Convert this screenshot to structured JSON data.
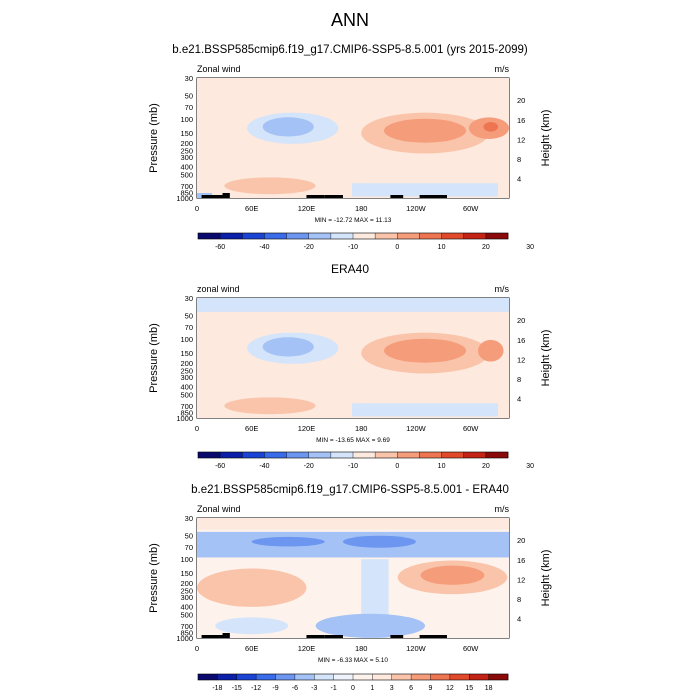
{
  "title": "ANN",
  "chart_data": [
    {
      "type": "heatmap",
      "subtitle": "b.e21.BSSP585cmip6.f19_g17.CMIP6-SSP5-8.5.001 (yrs 2015-2099)",
      "left_label": "Zonal wind",
      "right_label": "m/s",
      "ylabel": "Pressure (mb)",
      "ylabel_right": "Height (km)",
      "x_ticks": [
        "0",
        "60E",
        "120E",
        "180",
        "120W",
        "60W"
      ],
      "y_ticks": [
        "30",
        "50",
        "70",
        "100",
        "150",
        "200",
        "250",
        "300",
        "400",
        "500",
        "700",
        "850",
        "1000"
      ],
      "y2_ticks": [
        "20",
        "16",
        "12",
        "8",
        "4"
      ],
      "stats": "MIN = -12.72  MAX =  11.13",
      "colorbar_labels": [
        "-60",
        "-40",
        "-20",
        "-10",
        "0",
        "10",
        "20",
        "30"
      ],
      "colorbar_colors": [
        "#0a0a6e",
        "#0b1fa8",
        "#1c44d4",
        "#3a6be8",
        "#6d96f0",
        "#a4c2f5",
        "#d4e4fa",
        "#fde9dd",
        "#fac4aa",
        "#f59d7a",
        "#ee7552",
        "#e04a2a",
        "#c22315",
        "#8a0a0a"
      ],
      "field": "ssp_clim"
    },
    {
      "type": "heatmap",
      "subtitle": "ERA40",
      "left_label": "zonal wind",
      "right_label": "m/s",
      "ylabel": "Pressure (mb)",
      "ylabel_right": "Height (km)",
      "x_ticks": [
        "0",
        "60E",
        "120E",
        "180",
        "120W",
        "60W"
      ],
      "y_ticks": [
        "30",
        "50",
        "70",
        "100",
        "150",
        "200",
        "250",
        "300",
        "400",
        "500",
        "700",
        "850",
        "1000"
      ],
      "y2_ticks": [
        "20",
        "16",
        "12",
        "8",
        "4"
      ],
      "stats": "MIN = -13.65  MAX =   9.69",
      "colorbar_labels": [
        "-60",
        "-40",
        "-20",
        "-10",
        "0",
        "10",
        "20",
        "30"
      ],
      "colorbar_colors": [
        "#0a0a6e",
        "#0b1fa8",
        "#1c44d4",
        "#3a6be8",
        "#6d96f0",
        "#a4c2f5",
        "#d4e4fa",
        "#fde9dd",
        "#fac4aa",
        "#f59d7a",
        "#ee7552",
        "#e04a2a",
        "#c22315",
        "#8a0a0a"
      ],
      "field": "era_clim"
    },
    {
      "type": "heatmap",
      "subtitle": "b.e21.BSSP585cmip6.f19_g17.CMIP6-SSP5-8.5.001 - ERA40",
      "left_label": "Zonal wind",
      "right_label": "m/s",
      "ylabel": "Pressure (mb)",
      "ylabel_right": "Height (km)",
      "x_ticks": [
        "0",
        "60E",
        "120E",
        "180",
        "120W",
        "60W"
      ],
      "y_ticks": [
        "30",
        "50",
        "70",
        "100",
        "150",
        "200",
        "250",
        "300",
        "400",
        "500",
        "700",
        "850",
        "1000"
      ],
      "y2_ticks": [
        "20",
        "16",
        "12",
        "8",
        "4"
      ],
      "stats": "MIN =  -6.33  MAX =   5.10",
      "colorbar_labels": [
        "-18",
        "-15",
        "-12",
        "-9",
        "-6",
        "-3",
        "-1",
        "0",
        "1",
        "3",
        "6",
        "9",
        "12",
        "15",
        "18"
      ],
      "colorbar_colors": [
        "#0a0a6e",
        "#0b1fa8",
        "#1c44d4",
        "#3a6be8",
        "#6d96f0",
        "#a4c2f5",
        "#d4e4fa",
        "#eef3fc",
        "#fdf2ec",
        "#fde9dd",
        "#fac4aa",
        "#f59d7a",
        "#ee7552",
        "#e04a2a",
        "#c22315",
        "#8a0a0a"
      ],
      "field": "diff"
    }
  ]
}
